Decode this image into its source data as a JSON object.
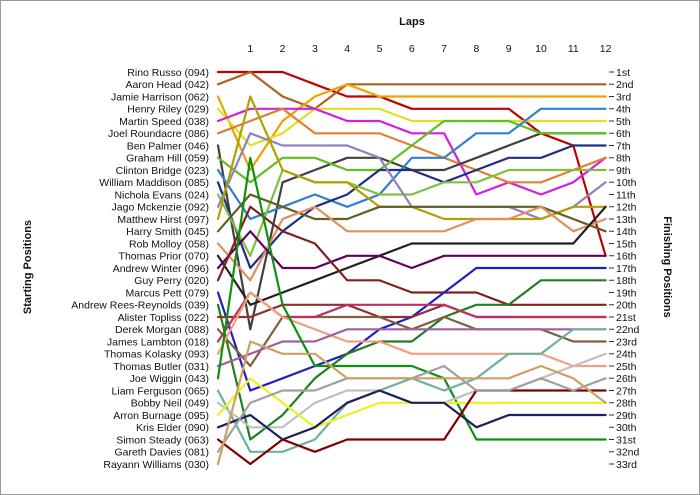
{
  "chart_data": {
    "type": "line",
    "title": "Laps",
    "ylabel_left": "Starting Positions",
    "ylabel_right": "Finishing Positions",
    "laps": [
      "1",
      "2",
      "3",
      "4",
      "5",
      "6",
      "7",
      "8",
      "9",
      "10",
      "11",
      "12"
    ],
    "finish_labels": [
      "1st",
      "2nd",
      "3rd",
      "4th",
      "5th",
      "6th",
      "7th",
      "8th",
      "9th",
      "10th",
      "11th",
      "12th",
      "13th",
      "14th",
      "15th",
      "16th",
      "17th",
      "18th",
      "19th",
      "20th",
      "21st",
      "22nd",
      "23rd",
      "24th",
      "25th",
      "26th",
      "27th",
      "28th",
      "29th",
      "30th",
      "31st",
      "32nd",
      "33rd"
    ],
    "series": [
      {
        "name": "Rino Russo (094)",
        "color": "#c00000",
        "positions": [
          1,
          1,
          2,
          3,
          3,
          4,
          4,
          4,
          4,
          6,
          7,
          16
        ]
      },
      {
        "name": "Aaron Head (042)",
        "color": "#b06020",
        "positions": [
          1,
          3,
          4,
          2,
          2,
          2,
          2,
          2,
          2,
          2,
          2,
          2
        ]
      },
      {
        "name": "Jamie Harrison (062)",
        "color": "#f0a000",
        "positions": [
          9,
          5,
          3,
          2,
          3,
          3,
          3,
          3,
          3,
          3,
          3,
          3
        ]
      },
      {
        "name": "Henry Riley (029)",
        "color": "#e0e020",
        "positions": [
          7,
          6,
          4,
          4,
          4,
          5,
          5,
          5,
          5,
          5,
          5,
          5
        ]
      },
      {
        "name": "Martin Speed (038)",
        "color": "#d020e0",
        "positions": [
          4,
          4,
          4,
          5,
          5,
          6,
          6,
          11,
          10,
          11,
          10,
          8
        ]
      },
      {
        "name": "Joel Roundacre (086)",
        "color": "#e08030",
        "positions": [
          5,
          4,
          6,
          6,
          6,
          7,
          8,
          9,
          10,
          10,
          9,
          8
        ]
      },
      {
        "name": "Ben Palmer (046)",
        "color": "#404040",
        "positions": [
          22,
          10,
          9,
          8,
          8,
          9,
          9,
          8,
          7,
          6,
          6,
          6
        ]
      },
      {
        "name": "Graham Hill (059)",
        "color": "#60c020",
        "positions": [
          10,
          8,
          8,
          9,
          9,
          7,
          5,
          5,
          5,
          6,
          6,
          6
        ]
      },
      {
        "name": "Clinton Bridge (023)",
        "color": "#3080d0",
        "positions": [
          13,
          12,
          11,
          12,
          11,
          8,
          8,
          6,
          6,
          4,
          4,
          4
        ]
      },
      {
        "name": "William Maddison (085)",
        "color": "#203080",
        "positions": [
          17,
          14,
          12,
          11,
          9,
          9,
          10,
          9,
          8,
          8,
          7,
          7
        ]
      },
      {
        "name": "Nichola Evans (024)",
        "color": "#80c040",
        "positions": [
          16,
          9,
          10,
          10,
          11,
          11,
          10,
          10,
          9,
          9,
          9,
          9
        ]
      },
      {
        "name": "Jago Mckenzie (092)",
        "color": "#9080c0",
        "positions": [
          6,
          7,
          7,
          7,
          8,
          12,
          12,
          12,
          12,
          13,
          12,
          10
        ]
      },
      {
        "name": "Matthew Hirst (097)",
        "color": "#b0a000",
        "positions": [
          3,
          9,
          10,
          10,
          12,
          12,
          13,
          13,
          13,
          13,
          12,
          12
        ]
      },
      {
        "name": "Harry Smith (045)",
        "color": "#606020",
        "positions": [
          11,
          12,
          13,
          13,
          12,
          12,
          12,
          12,
          12,
          12,
          13,
          14
        ]
      },
      {
        "name": "Rob Molloy (058)",
        "color": "#e09060",
        "positions": [
          18,
          13,
          12,
          14,
          14,
          14,
          14,
          13,
          13,
          12,
          14,
          13
        ]
      },
      {
        "name": "Thomas Prior (070)",
        "color": "#202020",
        "positions": [
          20,
          19,
          18,
          17,
          16,
          15,
          15,
          15,
          15,
          15,
          15,
          12
        ]
      },
      {
        "name": "Andrew Winter (096)",
        "color": "#600060",
        "positions": [
          14,
          17,
          17,
          16,
          16,
          17,
          16,
          16,
          16,
          16,
          16,
          16
        ]
      },
      {
        "name": "Guy Perry (020)",
        "color": "#802020",
        "positions": [
          12,
          14,
          15,
          18,
          18,
          19,
          19,
          19,
          20,
          20,
          20,
          20
        ]
      },
      {
        "name": "Marcus Pett (079)",
        "color": "#2020c0",
        "positions": [
          27,
          26,
          25,
          24,
          22,
          21,
          19,
          17,
          17,
          17,
          17,
          17
        ]
      },
      {
        "name": "Andrew Rees-Reynolds (039)",
        "color": "#208020",
        "positions": [
          31,
          29,
          26,
          24,
          23,
          23,
          21,
          20,
          20,
          18,
          18,
          18
        ]
      },
      {
        "name": "Alister Topliss (022)",
        "color": "#903030",
        "positions": [
          21,
          20,
          20,
          20,
          21,
          21,
          20,
          21,
          21,
          21,
          21,
          21
        ]
      },
      {
        "name": "Derek Morgan (088)",
        "color": "#806040",
        "positions": [
          25,
          21,
          21,
          21,
          21,
          22,
          21,
          22,
          22,
          22,
          23,
          23
        ]
      },
      {
        "name": "James Lambton (018)",
        "color": "#c03060",
        "positions": [
          19,
          21,
          21,
          20,
          20,
          20,
          20,
          21,
          21,
          21,
          21,
          21
        ]
      },
      {
        "name": "Thomas Kolasky (093)",
        "color": "#f0a080",
        "positions": [
          19,
          21,
          22,
          23,
          23,
          24,
          24,
          24,
          24,
          24,
          25,
          25
        ]
      },
      {
        "name": "Thomas Butler (031)",
        "color": "#a060a0",
        "positions": [
          24,
          23,
          23,
          22,
          22,
          22,
          22,
          22,
          22,
          22,
          22,
          22
        ]
      },
      {
        "name": "Joe Wiggin (043)",
        "color": "#109010",
        "positions": [
          8,
          20,
          25,
          25,
          25,
          25,
          26,
          31,
          31,
          31,
          31,
          31
        ]
      },
      {
        "name": "Liam Ferguson (065)",
        "color": "#70b0a0",
        "positions": [
          32,
          32,
          31,
          28,
          27,
          26,
          27,
          26,
          24,
          24,
          22,
          22
        ]
      },
      {
        "name": "Bobby Neil (049)",
        "color": "#c0c0c0",
        "positions": [
          30,
          30,
          28,
          27,
          27,
          28,
          28,
          27,
          27,
          26,
          25,
          24
        ]
      },
      {
        "name": "Arron Burnage (095)",
        "color": "#f0f020",
        "positions": [
          26,
          28,
          30,
          29,
          28,
          28,
          28,
          28,
          28,
          28,
          28,
          28
        ]
      },
      {
        "name": "Kris Elder (090)",
        "color": "#202060",
        "positions": [
          29,
          31,
          30,
          28,
          27,
          28,
          28,
          30,
          29,
          29,
          29,
          29
        ]
      },
      {
        "name": "Simon Steady (063)",
        "color": "#800000",
        "positions": [
          33,
          31,
          32,
          31,
          31,
          31,
          31,
          27,
          27,
          27,
          27,
          27
        ]
      },
      {
        "name": "Gareth Davies (081)",
        "color": "#a0a0a0",
        "positions": [
          28,
          27,
          27,
          26,
          26,
          26,
          25,
          27,
          27,
          26,
          27,
          26
        ]
      },
      {
        "name": "Rayann Williams (030)",
        "color": "#d0a060",
        "positions": [
          23,
          24,
          24,
          26,
          26,
          26,
          26,
          26,
          26,
          25,
          26,
          28
        ]
      }
    ]
  }
}
